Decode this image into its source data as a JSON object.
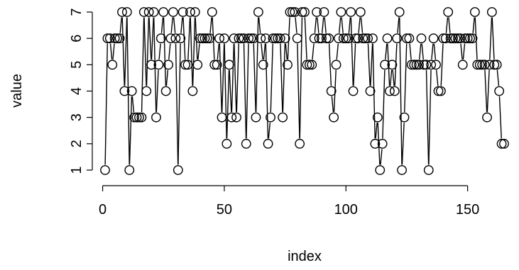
{
  "chart_data": {
    "type": "scatter",
    "plot_style": "both (points connected by broken lines)",
    "xlabel": "index",
    "ylabel": "value",
    "xlim": [
      1,
      165
    ],
    "ylim": [
      1,
      7
    ],
    "xticks": [
      0,
      50,
      100,
      150
    ],
    "yticks": [
      1,
      2,
      3,
      4,
      5,
      6,
      7
    ],
    "box": "L-shaped axes only",
    "grid": false,
    "series": [
      {
        "x": [
          1,
          2,
          3,
          4,
          5,
          6,
          7,
          8,
          9,
          10,
          11,
          12,
          13,
          14,
          15,
          16,
          17,
          18,
          19,
          20,
          21,
          22,
          23,
          24,
          25,
          26,
          27,
          28,
          29,
          30,
          31,
          32,
          33,
          34,
          35,
          36,
          37,
          38,
          39,
          40,
          41,
          42,
          43,
          44,
          45,
          46,
          47,
          48,
          49,
          50,
          51,
          52,
          53,
          54,
          55,
          56,
          57,
          58,
          59,
          60,
          61,
          62,
          63,
          64,
          65,
          66,
          67,
          68,
          69,
          70,
          71,
          72,
          73,
          74,
          75,
          76,
          77,
          78,
          79,
          80,
          81,
          82,
          83,
          84,
          85,
          86,
          87,
          88,
          89,
          90,
          91,
          92,
          93,
          94,
          95,
          96,
          97,
          98,
          99,
          100,
          101,
          102,
          103,
          104,
          105,
          106,
          107,
          108,
          109,
          110,
          111,
          112,
          113,
          114,
          115,
          116,
          117,
          118,
          119,
          120,
          121,
          122,
          123,
          124,
          125,
          126,
          127,
          128,
          129,
          130,
          131,
          132,
          133,
          134,
          135,
          136,
          137,
          138,
          139,
          140,
          141,
          142,
          143,
          144,
          145,
          146,
          147,
          148,
          149,
          150,
          151,
          152,
          153,
          154,
          155,
          156,
          157,
          158,
          159,
          160,
          161,
          162,
          163,
          164,
          165
        ],
        "y": [
          1,
          6,
          6,
          5,
          6,
          6,
          6,
          7,
          4,
          7,
          1,
          4,
          3,
          3,
          3,
          3,
          7,
          4,
          7,
          5,
          7,
          3,
          5,
          6,
          7,
          4,
          5,
          6,
          7,
          6,
          1,
          6,
          7,
          5,
          5,
          7,
          4,
          7,
          5,
          6,
          6,
          6,
          6,
          6,
          7,
          5,
          5,
          6,
          3,
          6,
          2,
          5,
          3,
          6,
          3,
          6,
          6,
          6,
          2,
          6,
          6,
          6,
          3,
          7,
          6,
          5,
          6,
          2,
          3,
          6,
          6,
          6,
          6,
          3,
          6,
          5,
          7,
          7,
          7,
          6,
          2,
          7,
          7,
          5,
          5,
          5,
          6,
          7,
          6,
          6,
          7,
          6,
          6,
          4,
          3,
          5,
          6,
          7,
          6,
          6,
          6,
          7,
          4,
          6,
          6,
          7,
          6,
          6,
          6,
          4,
          6,
          2,
          3,
          1,
          2,
          5,
          6,
          4,
          5,
          4,
          6,
          7,
          1,
          3,
          6,
          6,
          5,
          5,
          5,
          5,
          6,
          5,
          5,
          1,
          5,
          6,
          5,
          4,
          4,
          6,
          6,
          7,
          6,
          6,
          6,
          6,
          6,
          5,
          6,
          6,
          6,
          6,
          7,
          5,
          5,
          5,
          5,
          3,
          5,
          7,
          5,
          5,
          4,
          2,
          2
        ]
      }
    ]
  }
}
